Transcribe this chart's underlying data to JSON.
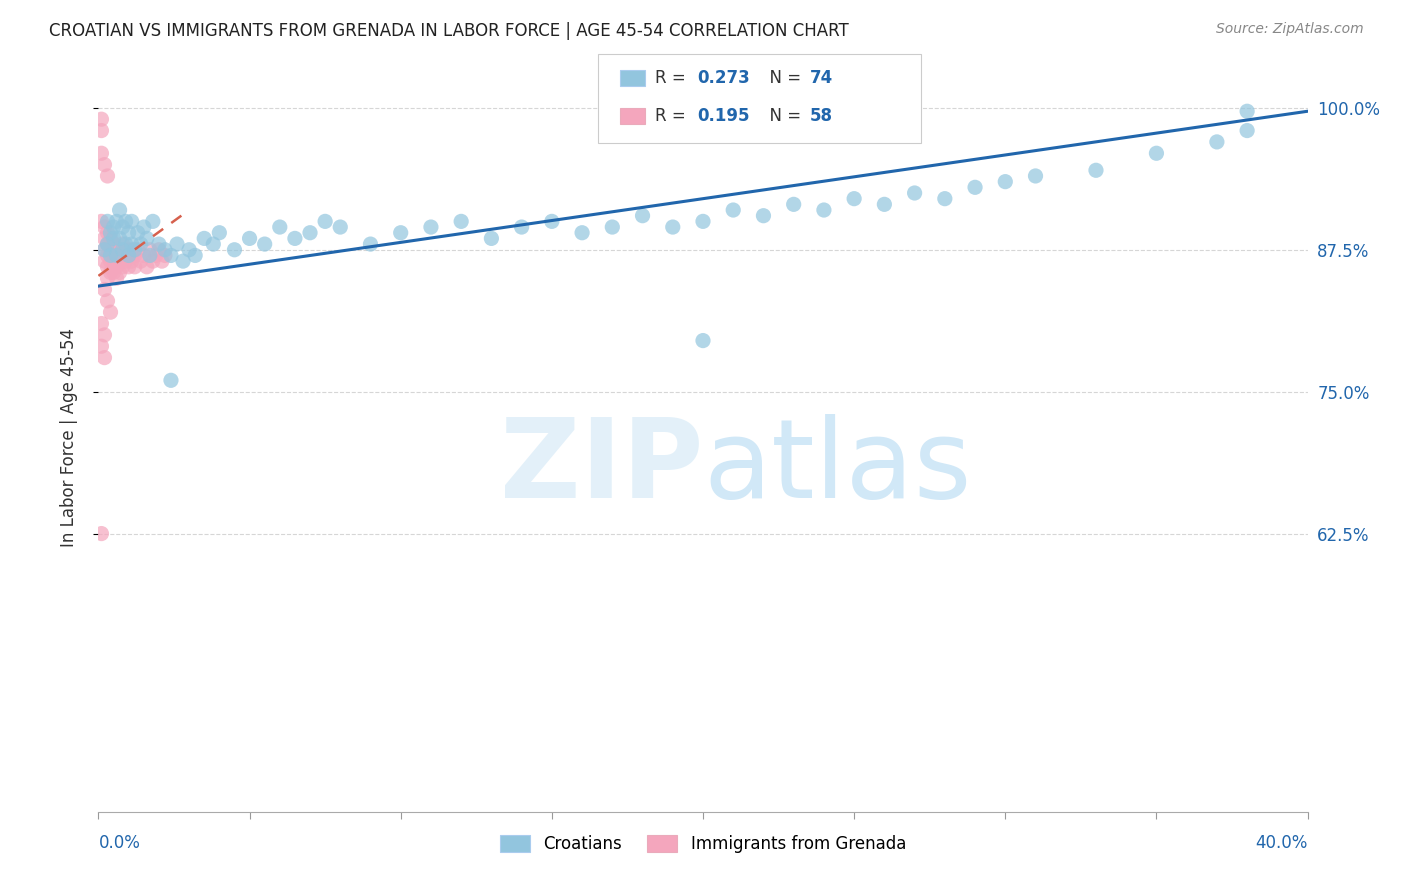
{
  "title": "CROATIAN VS IMMIGRANTS FROM GRENADA IN LABOR FORCE | AGE 45-54 CORRELATION CHART",
  "source": "Source: ZipAtlas.com",
  "ylabel": "In Labor Force | Age 45-54",
  "right_yticks": [
    1.0,
    0.875,
    0.75,
    0.625
  ],
  "right_yticklabels": [
    "100.0%",
    "87.5%",
    "75.0%",
    "62.5%"
  ],
  "xlim": [
    0.0,
    0.4
  ],
  "ylim": [
    0.38,
    1.04
  ],
  "blue_color": "#92c5de",
  "pink_color": "#f4a6bd",
  "trend_blue": "#2166ac",
  "trend_pink": "#d6604d",
  "blue_trend_x": [
    0.0,
    0.4
  ],
  "blue_trend_y": [
    0.843,
    0.997
  ],
  "pink_trend_x": [
    0.0,
    0.03
  ],
  "pink_trend_y": [
    0.852,
    0.91
  ],
  "croatian_x": [
    0.002,
    0.003,
    0.003,
    0.004,
    0.004,
    0.005,
    0.005,
    0.006,
    0.006,
    0.007,
    0.007,
    0.008,
    0.008,
    0.009,
    0.009,
    0.01,
    0.01,
    0.011,
    0.011,
    0.012,
    0.013,
    0.014,
    0.015,
    0.016,
    0.017,
    0.018,
    0.02,
    0.022,
    0.024,
    0.026,
    0.028,
    0.03,
    0.032,
    0.035,
    0.038,
    0.04,
    0.045,
    0.05,
    0.055,
    0.06,
    0.065,
    0.07,
    0.075,
    0.08,
    0.09,
    0.1,
    0.11,
    0.12,
    0.13,
    0.14,
    0.15,
    0.16,
    0.17,
    0.18,
    0.19,
    0.2,
    0.21,
    0.22,
    0.23,
    0.24,
    0.25,
    0.26,
    0.27,
    0.28,
    0.29,
    0.3,
    0.31,
    0.33,
    0.35,
    0.37,
    0.38,
    0.024,
    0.2,
    0.38
  ],
  "croatian_y": [
    0.875,
    0.9,
    0.88,
    0.89,
    0.87,
    0.885,
    0.895,
    0.87,
    0.9,
    0.885,
    0.91,
    0.875,
    0.895,
    0.88,
    0.9,
    0.87,
    0.89,
    0.88,
    0.9,
    0.875,
    0.89,
    0.88,
    0.895,
    0.885,
    0.87,
    0.9,
    0.88,
    0.875,
    0.87,
    0.88,
    0.865,
    0.875,
    0.87,
    0.885,
    0.88,
    0.89,
    0.875,
    0.885,
    0.88,
    0.895,
    0.885,
    0.89,
    0.9,
    0.895,
    0.88,
    0.89,
    0.895,
    0.9,
    0.885,
    0.895,
    0.9,
    0.89,
    0.895,
    0.905,
    0.895,
    0.9,
    0.91,
    0.905,
    0.915,
    0.91,
    0.92,
    0.915,
    0.925,
    0.92,
    0.93,
    0.935,
    0.94,
    0.945,
    0.96,
    0.97,
    0.98,
    0.76,
    0.795,
    0.997
  ],
  "grenada_x": [
    0.001,
    0.001,
    0.001,
    0.002,
    0.002,
    0.002,
    0.002,
    0.003,
    0.003,
    0.003,
    0.003,
    0.003,
    0.004,
    0.004,
    0.004,
    0.004,
    0.005,
    0.005,
    0.005,
    0.005,
    0.006,
    0.006,
    0.006,
    0.007,
    0.007,
    0.007,
    0.008,
    0.008,
    0.008,
    0.009,
    0.009,
    0.01,
    0.01,
    0.011,
    0.011,
    0.012,
    0.012,
    0.013,
    0.014,
    0.015,
    0.016,
    0.017,
    0.018,
    0.019,
    0.02,
    0.021,
    0.022,
    0.002,
    0.003,
    0.004,
    0.001,
    0.002,
    0.003,
    0.001,
    0.002,
    0.001,
    0.002,
    0.001
  ],
  "grenada_y": [
    0.99,
    0.98,
    0.9,
    0.885,
    0.895,
    0.875,
    0.865,
    0.88,
    0.89,
    0.87,
    0.86,
    0.85,
    0.875,
    0.865,
    0.855,
    0.885,
    0.875,
    0.865,
    0.855,
    0.88,
    0.87,
    0.86,
    0.85,
    0.875,
    0.865,
    0.855,
    0.87,
    0.86,
    0.88,
    0.865,
    0.875,
    0.87,
    0.86,
    0.875,
    0.865,
    0.87,
    0.86,
    0.875,
    0.865,
    0.87,
    0.86,
    0.875,
    0.865,
    0.87,
    0.875,
    0.865,
    0.87,
    0.84,
    0.83,
    0.82,
    0.96,
    0.95,
    0.94,
    0.81,
    0.8,
    0.79,
    0.78,
    0.625
  ]
}
